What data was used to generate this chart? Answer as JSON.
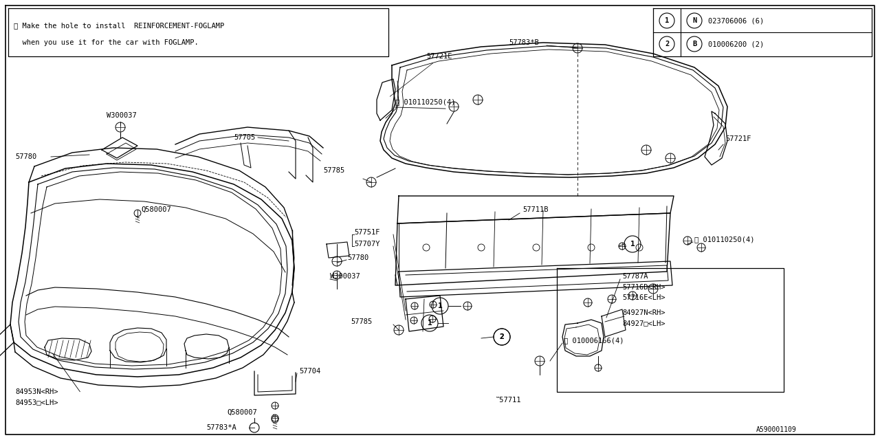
{
  "bg_color": "#ffffff",
  "line_color": "#000000",
  "fig_width": 12.8,
  "fig_height": 6.4,
  "note_line1": "※ Make the hole to install  REINFORCEMENT-FOGLAMP",
  "note_line2": "  when you use it for the car with FOGLAMP.",
  "legend": [
    {
      "num": "1",
      "sym": "N",
      "code": "023706006 (6)"
    },
    {
      "num": "2",
      "sym": "B",
      "code": "010006200 (2)"
    }
  ],
  "footer": "A590001109"
}
